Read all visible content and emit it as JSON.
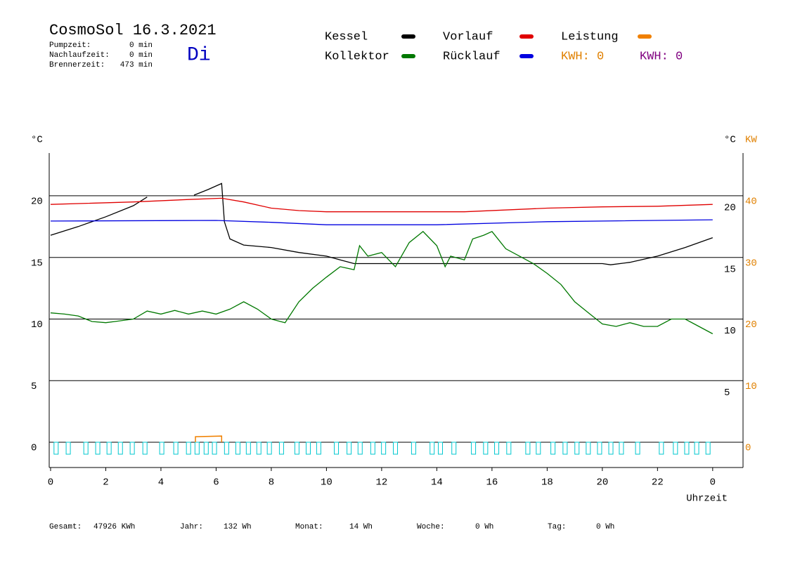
{
  "header": {
    "title": "CosmoSol 16.3.2021",
    "day": "Di",
    "info": [
      {
        "label": "Pumpzeit:",
        "value": "0 min"
      },
      {
        "label": "Nachlaufzeit:",
        "value": "0 min"
      },
      {
        "label": "Brennerzeit:",
        "value": "473 min"
      }
    ]
  },
  "footer": [
    {
      "label": "Gesamt:",
      "value": "47926 KWh"
    },
    {
      "label": "Jahr:",
      "value": "132 Wh"
    },
    {
      "label": "Monat:",
      "value": "14 Wh"
    },
    {
      "label": "Woche:",
      "value": "0 Wh"
    },
    {
      "label": "Tag:",
      "value": "0 Wh"
    }
  ],
  "chart_data": {
    "type": "line",
    "ylabel": "°C",
    "y2label_left": "°C",
    "y2label": "KW",
    "xlabel": "Uhrzeit",
    "xlim": [
      -0.05,
      25.1
    ],
    "xticks": [
      0,
      2,
      4,
      6,
      8,
      10,
      12,
      14,
      16,
      18,
      20,
      22,
      {
        "value": 24,
        "label": "0"
      }
    ],
    "ylim": [
      -2.05,
      23.47
    ],
    "yticks": [
      0,
      5,
      10,
      15,
      20
    ],
    "y2lim": [
      -4.1,
      46.95
    ],
    "y2ticks": [
      0,
      10,
      20,
      30,
      40
    ],
    "y2color": "#e08000",
    "grid": true,
    "kwh": [
      {
        "label": "KWH: 0",
        "color": "#e08000"
      },
      {
        "label": "KWH: 0",
        "color": "#800080"
      }
    ],
    "series": [
      {
        "name": "Kessel",
        "color": "#000000",
        "x": [
          0,
          1,
          2,
          3,
          3.5,
          3.6,
          5.2,
          5.7,
          6.2,
          6.3,
          6.5,
          7,
          8,
          9,
          10,
          10.5,
          11,
          15,
          20,
          20.3,
          21,
          22,
          23,
          24
        ],
        "values": [
          16.8,
          17.5,
          18.3,
          19.2,
          19.9,
          null,
          20.05,
          20.5,
          21.0,
          17.9,
          16.5,
          16.0,
          15.8,
          15.4,
          15.1,
          14.8,
          14.5,
          14.5,
          14.5,
          14.4,
          14.6,
          15.1,
          15.8,
          16.6
        ]
      },
      {
        "name": "Kollektor",
        "color": "#007800",
        "x": [
          0,
          0.5,
          1,
          1.5,
          2,
          2.5,
          3,
          3.5,
          4,
          4.5,
          5,
          5.5,
          6,
          6.5,
          7,
          7.5,
          8,
          8.5,
          9,
          9.5,
          10,
          10.5,
          11,
          11.2,
          11.5,
          12,
          12.5,
          13,
          13.5,
          14,
          14.3,
          14.5,
          15,
          15.3,
          15.7,
          16,
          16.5,
          17,
          17.5,
          18,
          18.5,
          19,
          19.5,
          20,
          20.5,
          21,
          21.5,
          22,
          22.5,
          23,
          23.5,
          24
        ],
        "values": [
          10.5,
          10.4,
          10.25,
          9.8,
          9.7,
          9.85,
          10.0,
          10.65,
          10.4,
          10.7,
          10.4,
          10.65,
          10.4,
          10.8,
          11.4,
          10.8,
          10.0,
          9.7,
          11.4,
          12.5,
          13.4,
          14.25,
          14.0,
          15.95,
          15.1,
          15.4,
          14.25,
          16.2,
          17.1,
          15.95,
          14.25,
          15.1,
          14.8,
          16.5,
          16.8,
          17.1,
          15.7,
          15.1,
          14.5,
          13.7,
          12.8,
          11.4,
          10.5,
          9.6,
          9.4,
          9.7,
          9.4,
          9.4,
          10.0,
          10.0,
          9.4,
          8.8
        ]
      },
      {
        "name": "Vorlauf",
        "color": "#e00000",
        "x": [
          0,
          3,
          5,
          6.2,
          7,
          8,
          9,
          10,
          12,
          15,
          18,
          20,
          22,
          24
        ],
        "values": [
          19.3,
          19.5,
          19.7,
          19.8,
          19.5,
          19.0,
          18.8,
          18.7,
          18.7,
          18.7,
          19.0,
          19.1,
          19.15,
          19.3
        ]
      },
      {
        "name": "Rücklauf",
        "color": "#0000e0",
        "x": [
          0,
          6,
          8,
          10,
          14,
          18,
          24
        ],
        "values": [
          17.95,
          18.0,
          17.85,
          17.65,
          17.65,
          17.9,
          18.05
        ]
      },
      {
        "name": "Leistung",
        "color": "#f08000",
        "axis": "y2",
        "x": [
          5.25,
          5.25,
          6.2,
          6.2
        ],
        "values": [
          0,
          0.9,
          1.0,
          0
        ]
      }
    ],
    "pulse_color": "#00c8d0",
    "pulses": [
      0.2,
      0.64,
      1.28,
      1.71,
      2.12,
      2.53,
      2.96,
      3.42,
      4.03,
      4.54,
      5.0,
      5.31,
      5.64,
      5.94,
      6.38,
      6.79,
      7.17,
      7.55,
      7.93,
      8.37,
      8.93,
      9.34,
      9.72,
      10.36,
      10.82,
      11.22,
      11.68,
      12.07,
      12.5,
      13.16,
      13.83,
      14.13,
      14.62,
      15.33,
      15.77,
      16.17,
      16.61,
      17.3,
      17.68,
      18.21,
      18.65,
      19.08,
      19.49,
      19.9,
      20.31,
      20.69,
      21.28,
      22.14,
      22.65,
      23.06,
      23.42,
      23.83
    ]
  }
}
